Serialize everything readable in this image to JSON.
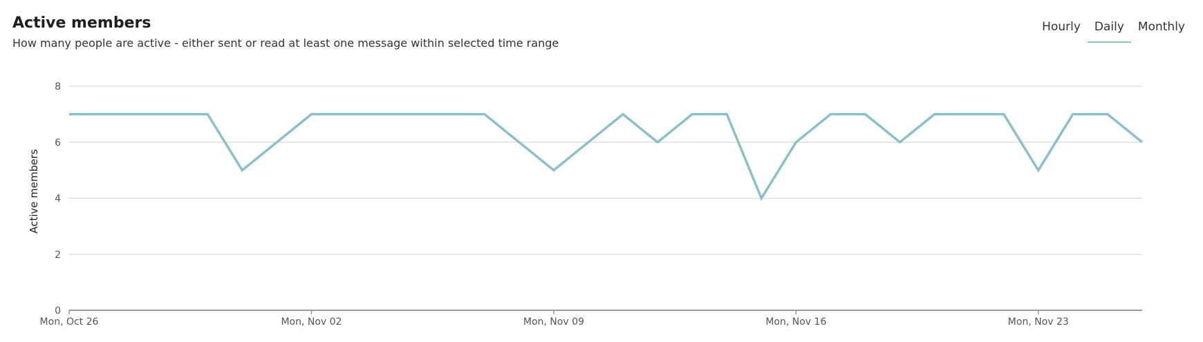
{
  "header": {
    "title": "Active members",
    "subtitle": "How many people are active - either sent or read at least one message within selected time range"
  },
  "tabs": [
    {
      "label": "Hourly",
      "active": false
    },
    {
      "label": "Daily",
      "active": true
    },
    {
      "label": "Monthly",
      "active": false
    }
  ],
  "colors": {
    "line": "#8bbfc9",
    "grid": "#d9d9d9",
    "axis": "#999999"
  },
  "chart_data": {
    "type": "line",
    "title": "",
    "xlabel": "",
    "ylabel": "Active members",
    "ylim": [
      0,
      8
    ],
    "yticks": [
      0,
      2,
      4,
      6,
      8
    ],
    "grid": true,
    "x": [
      "Oct 26",
      "Oct 27",
      "Oct 28",
      "Oct 29",
      "Oct 30",
      "Oct 31",
      "Nov 01",
      "Nov 02",
      "Nov 03",
      "Nov 04",
      "Nov 05",
      "Nov 06",
      "Nov 07",
      "Nov 08",
      "Nov 09",
      "Nov 10",
      "Nov 11",
      "Nov 12",
      "Nov 13",
      "Nov 14",
      "Nov 15",
      "Nov 16",
      "Nov 17",
      "Nov 18",
      "Nov 19",
      "Nov 20",
      "Nov 21",
      "Nov 22",
      "Nov 23",
      "Nov 24",
      "Nov 25",
      "Nov 26"
    ],
    "xticks": [
      "Mon, Oct 26",
      "Mon, Nov 02",
      "Mon, Nov 09",
      "Mon, Nov 16",
      "Mon, Nov 23"
    ],
    "series": [
      {
        "values": [
          7,
          7,
          7,
          7,
          7,
          5,
          6,
          7,
          7,
          7,
          7,
          7,
          7,
          6,
          5,
          6,
          7,
          6,
          7,
          7,
          4,
          6,
          7,
          7,
          6,
          7,
          7,
          7,
          5,
          7,
          7,
          6
        ]
      }
    ]
  }
}
